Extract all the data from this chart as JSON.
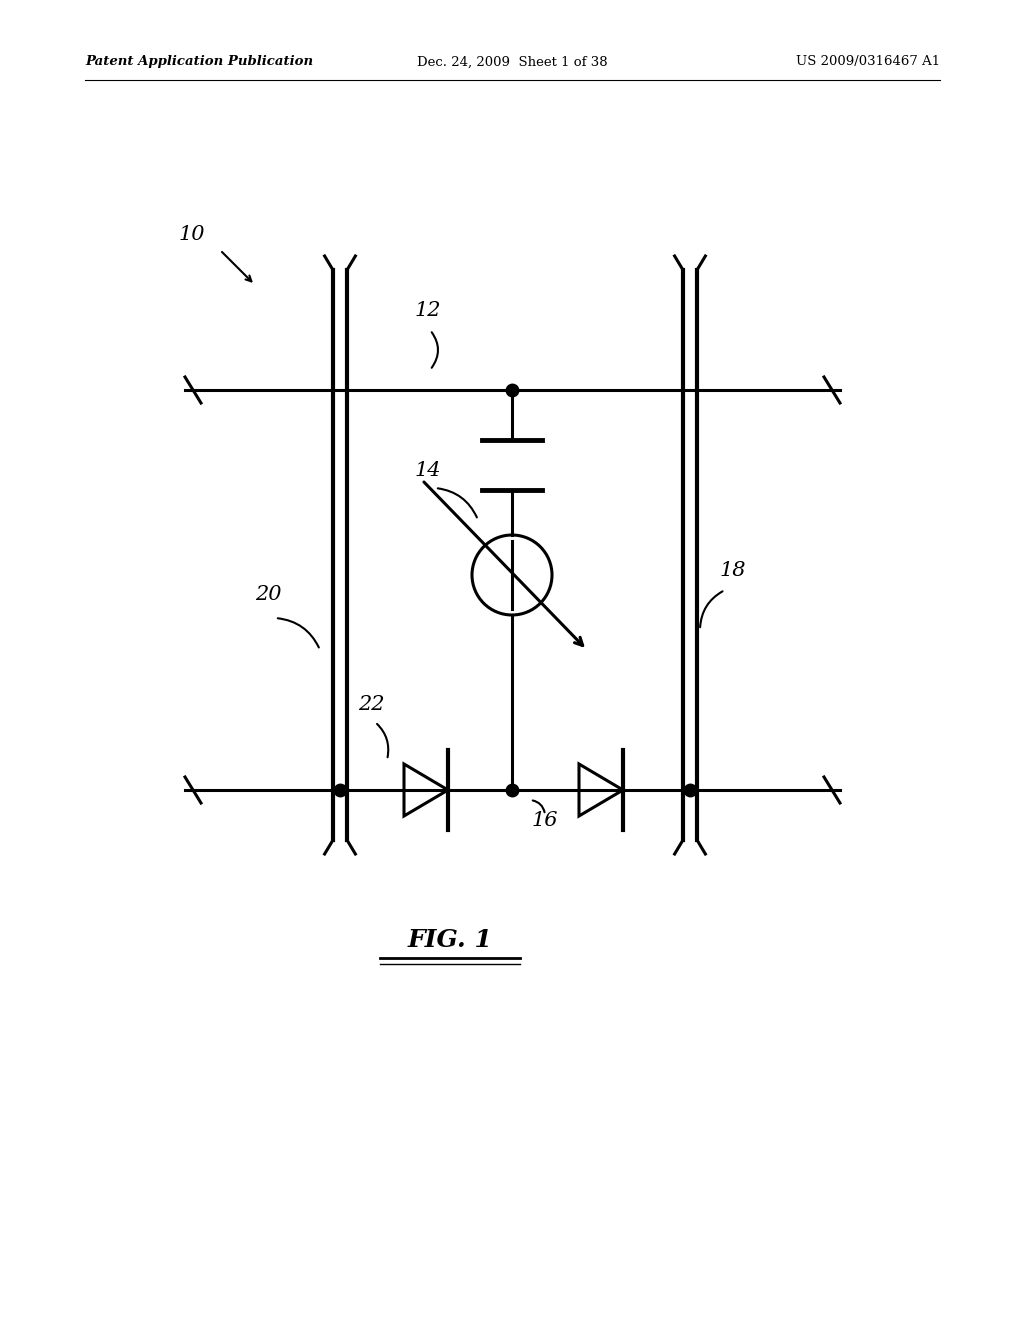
{
  "bg_color": "#ffffff",
  "line_color": "#000000",
  "header_left": "Patent Application Publication",
  "header_mid": "Dec. 24, 2009  Sheet 1 of 38",
  "header_right": "US 2009/0316467 A1",
  "label_10": "10",
  "label_12": "12",
  "label_14": "14",
  "label_16": "16",
  "label_18": "18",
  "label_20": "20",
  "label_22": "22"
}
